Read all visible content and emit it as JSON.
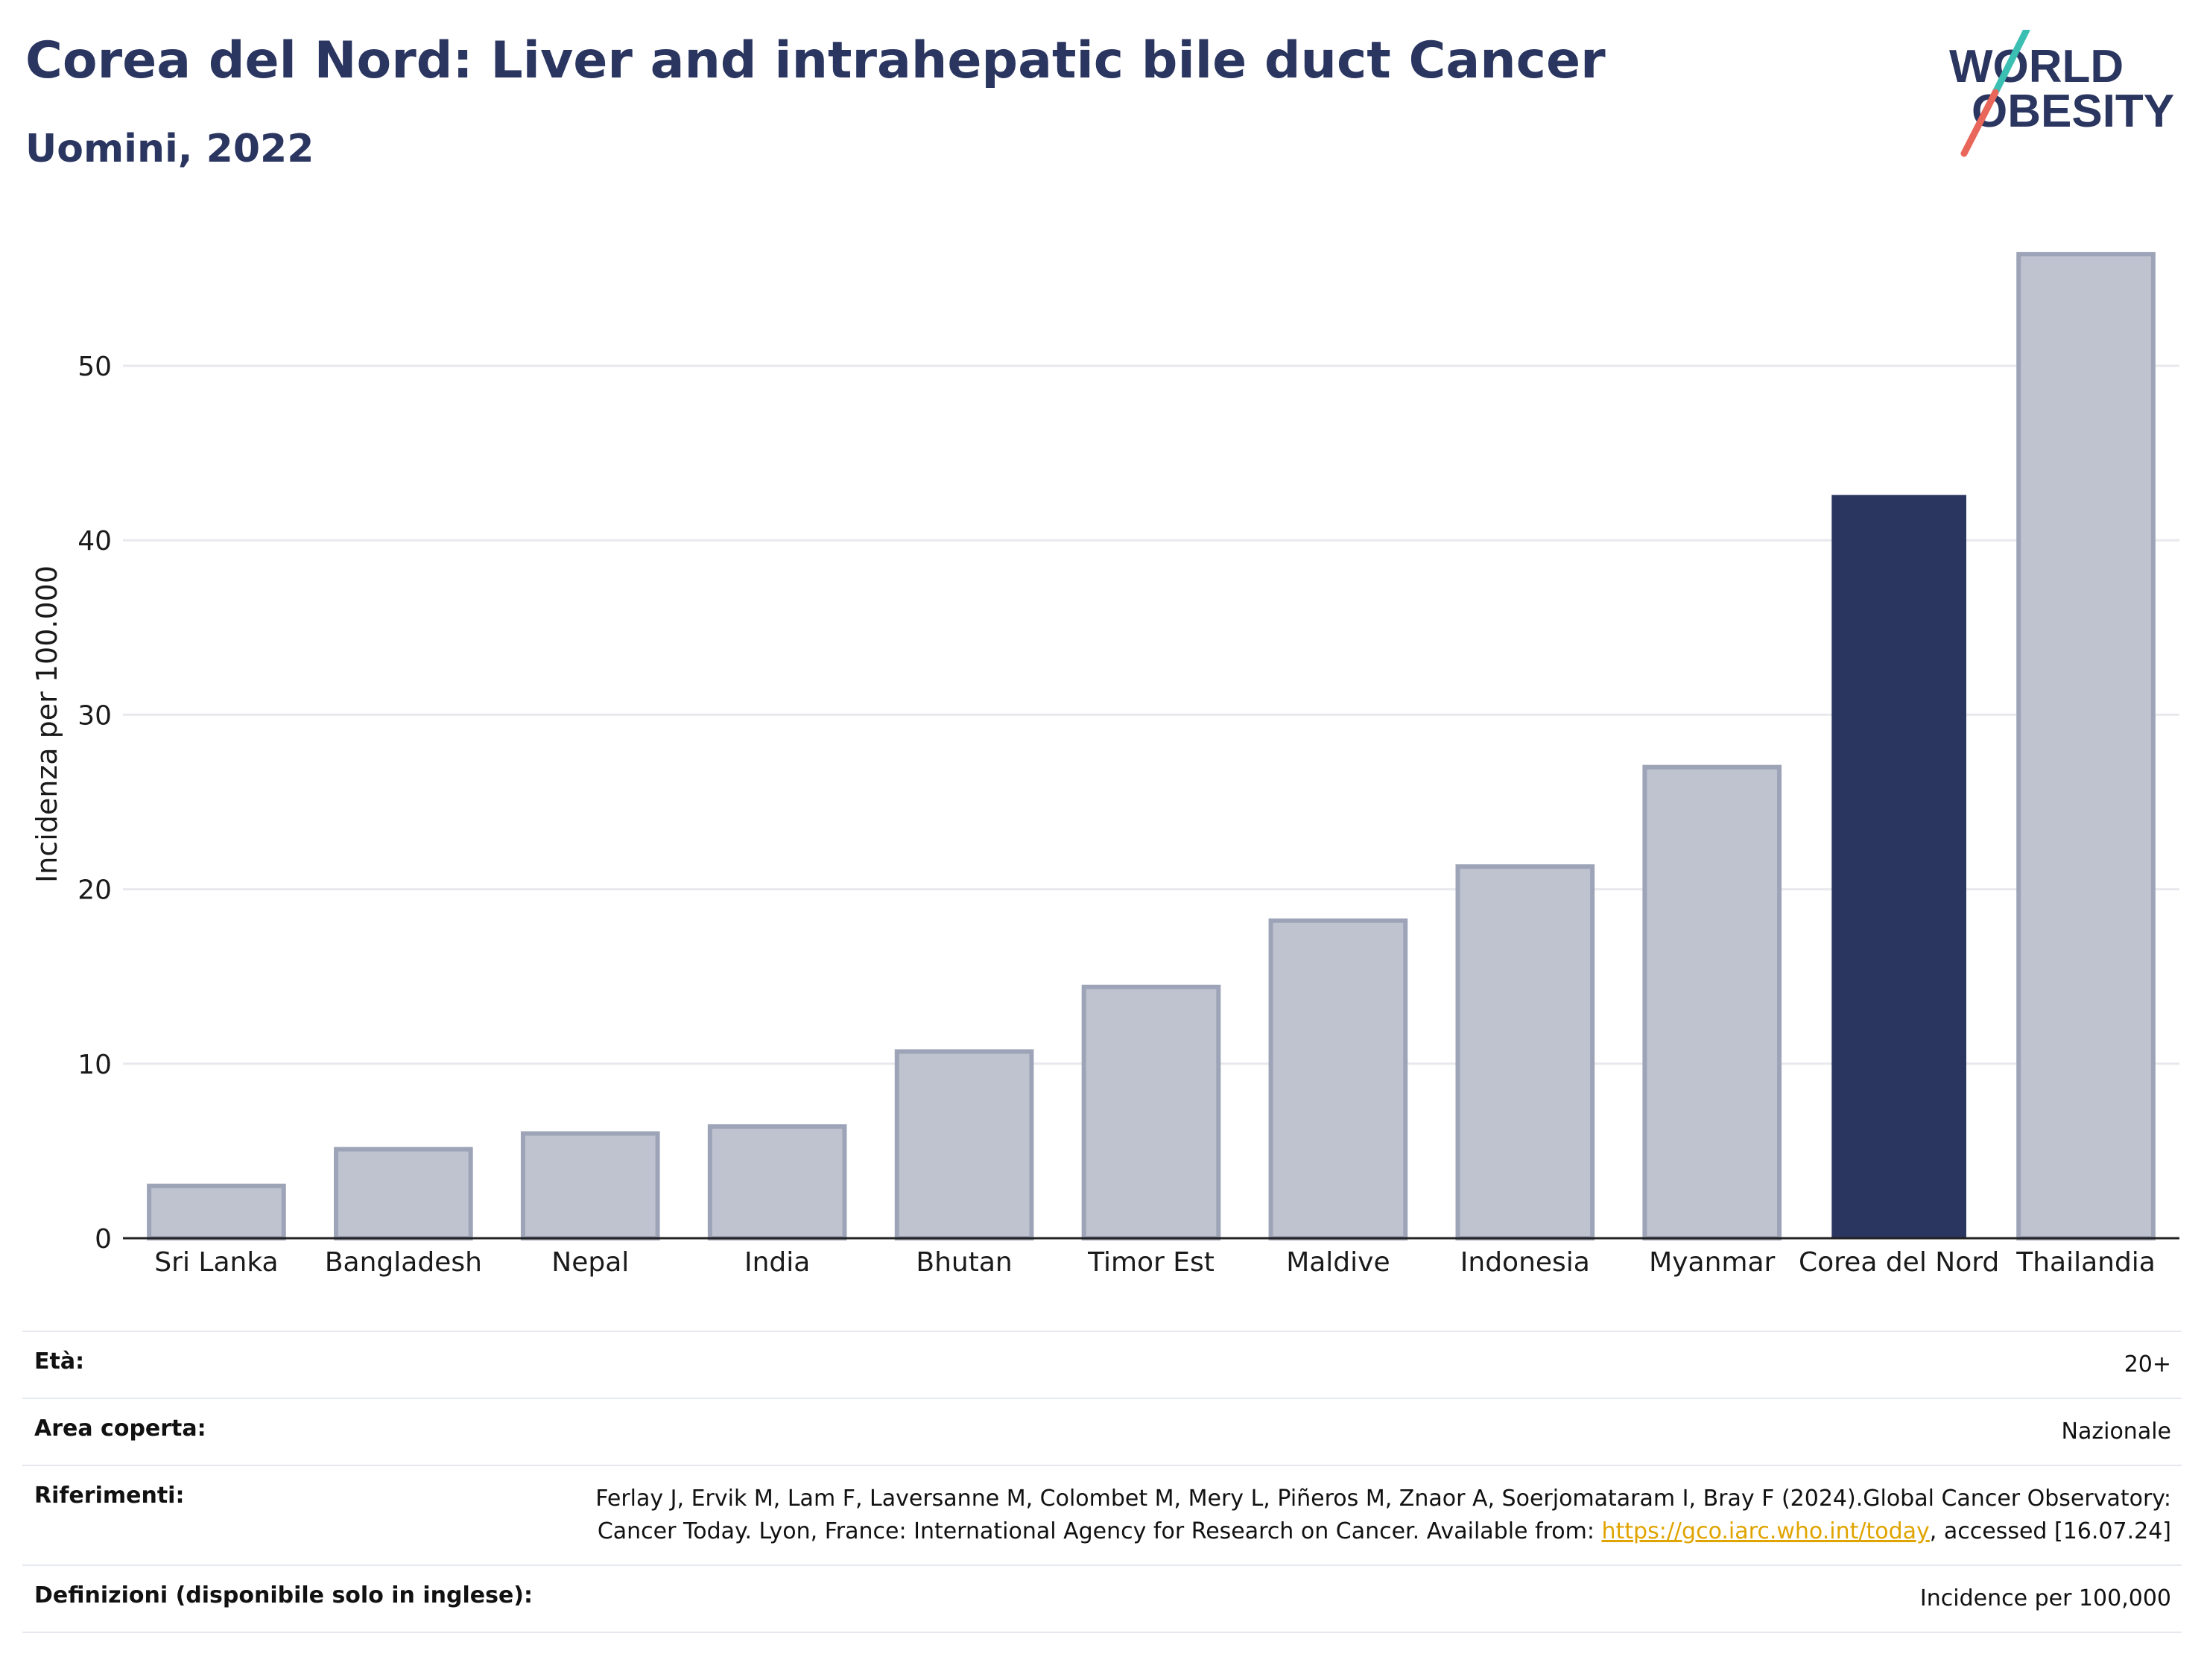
{
  "header": {
    "title": "Corea del Nord: Liver and intrahepatic bile duct Cancer",
    "subtitle": "Uomini, 2022"
  },
  "logo": {
    "line1": "WORLD",
    "line2": "OBESITY",
    "colors": {
      "text": "#2a3560",
      "slash_top": "#3bbfb3",
      "slash_bottom": "#e8675a"
    }
  },
  "chart_data": {
    "type": "bar",
    "categories": [
      "Sri Lanka",
      "Bangladesh",
      "Nepal",
      "India",
      "Bhutan",
      "Timor Est",
      "Maldive",
      "Indonesia",
      "Myanmar",
      "Corea del Nord",
      "Thailandia"
    ],
    "values": [
      3.0,
      5.1,
      6.0,
      6.4,
      10.7,
      14.4,
      18.2,
      21.3,
      27.0,
      42.6,
      56.4
    ],
    "highlight": "Corea del Nord",
    "ylabel": "Incidenza per 100.000",
    "ylim": [
      0,
      58
    ],
    "yticks": [
      0,
      10,
      20,
      30,
      40,
      50
    ],
    "grid": true,
    "colors": {
      "bar": "#bfc3cf",
      "bar_border": "#9ea4b8",
      "highlight": "#2a3560",
      "grid": "#e8e9ee",
      "axis": "#222222"
    }
  },
  "meta": {
    "eta_label": "Età:",
    "eta_value": "20+",
    "area_label": "Area coperta:",
    "area_value": "Nazionale",
    "ref_label": "Riferimenti:",
    "ref_text_1": "Ferlay J, Ervik M, Lam F, Laversanne M, Colombet M, Mery L, Piñeros M, Znaor A, Soerjomataram I, Bray F (2024).Global Cancer Observatory: Cancer Today. Lyon, France: International Agency for Research on Cancer. Available from: ",
    "ref_link": "https://gco.iarc.who.int/today",
    "ref_text_2": ", accessed [16.07.24]",
    "def_label": "Definizioni (disponibile solo in inglese):",
    "def_value": "Incidence per 100,000"
  }
}
